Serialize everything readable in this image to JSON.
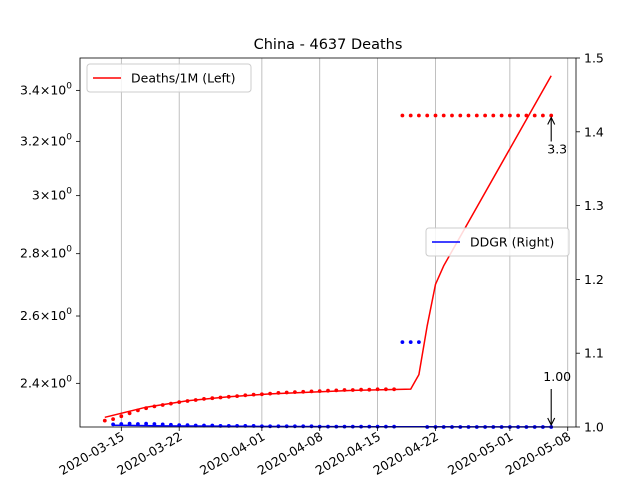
{
  "chart_data": {
    "type": "line",
    "title": "China - 4637 Deaths",
    "x_axis": {
      "type": "date",
      "range": [
        "2020-03-10",
        "2020-05-09"
      ],
      "tick_labels": [
        "2020-03-15",
        "2020-03-22",
        "2020-04-01",
        "2020-04-08",
        "2020-04-15",
        "2020-04-22",
        "2020-05-01",
        "2020-05-08"
      ],
      "grid": true
    },
    "y_left": {
      "scale": "log",
      "range": [
        2.2786,
        3.5334
      ],
      "tick_labels": [
        {
          "value": 2.4,
          "base": "2.4",
          "exp": "0"
        },
        {
          "value": 2.6,
          "base": "2.6",
          "exp": "0"
        },
        {
          "value": 2.8,
          "base": "2.8",
          "exp": "0"
        },
        {
          "value": 3.0,
          "base": "3",
          "exp": "0"
        },
        {
          "value": 3.2,
          "base": "3.2",
          "exp": "0"
        },
        {
          "value": 3.4,
          "base": "3.4",
          "exp": "0"
        }
      ]
    },
    "y_right": {
      "scale": "linear",
      "range": [
        1.0,
        1.5
      ],
      "tick_labels": [
        "1.0",
        "1.1",
        "1.2",
        "1.3",
        "1.4",
        "1.5"
      ]
    },
    "series": [
      {
        "name": "Deaths/1M (Left)",
        "axis": "left",
        "style": "line",
        "color": "#ff0000",
        "x": [
          "2020-03-13",
          "2020-03-18",
          "2020-03-23",
          "2020-03-28",
          "2020-04-02",
          "2020-04-07",
          "2020-04-12",
          "2020-04-17",
          "2020-04-19",
          "2020-04-20",
          "2020-04-21",
          "2020-04-22",
          "2020-04-23",
          "2020-05-06"
        ],
        "y": [
          2.305,
          2.333,
          2.351,
          2.362,
          2.37,
          2.375,
          2.38,
          2.3825,
          2.3835,
          2.425,
          2.57,
          2.7,
          2.76,
          3.46
        ]
      },
      {
        "name": "",
        "axis": "left",
        "style": "dots",
        "color": "#ff0000",
        "x": [
          "2020-03-13",
          "2020-03-14",
          "2020-03-15",
          "2020-03-16",
          "2020-03-17",
          "2020-03-18",
          "2020-03-19",
          "2020-03-20",
          "2020-03-21",
          "2020-03-22",
          "2020-03-23",
          "2020-03-24",
          "2020-03-25",
          "2020-03-26",
          "2020-03-27",
          "2020-03-28",
          "2020-03-29",
          "2020-03-30",
          "2020-03-31",
          "2020-04-01",
          "2020-04-02",
          "2020-04-03",
          "2020-04-04",
          "2020-04-05",
          "2020-04-06",
          "2020-04-07",
          "2020-04-08",
          "2020-04-09",
          "2020-04-10",
          "2020-04-11",
          "2020-04-12",
          "2020-04-13",
          "2020-04-14",
          "2020-04-15",
          "2020-04-16",
          "2020-04-17"
        ],
        "y": [
          2.296,
          2.3,
          2.308,
          2.316,
          2.324,
          2.33,
          2.335,
          2.339,
          2.343,
          2.347,
          2.35,
          2.353,
          2.356,
          2.358,
          2.36,
          2.362,
          2.364,
          2.366,
          2.368,
          2.369,
          2.371,
          2.373,
          2.374,
          2.375,
          2.376,
          2.377,
          2.378,
          2.379,
          2.38,
          2.381,
          2.381,
          2.382,
          2.382,
          2.383,
          2.383,
          2.383
        ]
      },
      {
        "name": "",
        "axis": "left",
        "style": "dots",
        "color": "#ff0000",
        "x": [
          "2020-04-18",
          "2020-04-19",
          "2020-04-20",
          "2020-04-21",
          "2020-04-22",
          "2020-04-23",
          "2020-04-24",
          "2020-04-25",
          "2020-04-26",
          "2020-04-27",
          "2020-04-28",
          "2020-04-29",
          "2020-04-30",
          "2020-05-01",
          "2020-05-02",
          "2020-05-03",
          "2020-05-04",
          "2020-05-05",
          "2020-05-06"
        ],
        "y": [
          3.3,
          3.3,
          3.3,
          3.3,
          3.3,
          3.3,
          3.3,
          3.3,
          3.3,
          3.3,
          3.3,
          3.3,
          3.3,
          3.3,
          3.3,
          3.3,
          3.3,
          3.3,
          3.3
        ]
      },
      {
        "name": "DDGR (Right)",
        "axis": "right",
        "style": "line",
        "color": "#0000ff",
        "x": [
          "2020-03-14",
          "2020-03-20",
          "2020-03-30",
          "2020-04-10",
          "2020-04-20",
          "2020-05-06"
        ],
        "y": [
          1.0025,
          1.0015,
          1.001,
          1.0005,
          1.0003,
          1.0002
        ]
      },
      {
        "name": "",
        "axis": "right",
        "style": "dots",
        "color": "#0000ff",
        "x": [
          "2020-03-14",
          "2020-03-15",
          "2020-03-16",
          "2020-03-17",
          "2020-03-18",
          "2020-03-19",
          "2020-03-20",
          "2020-03-21",
          "2020-03-22",
          "2020-03-23",
          "2020-03-24",
          "2020-03-25",
          "2020-03-26",
          "2020-03-27",
          "2020-03-28",
          "2020-03-29",
          "2020-03-30",
          "2020-03-31",
          "2020-04-01",
          "2020-04-02",
          "2020-04-03",
          "2020-04-04",
          "2020-04-05",
          "2020-04-06",
          "2020-04-07",
          "2020-04-08",
          "2020-04-09",
          "2020-04-10",
          "2020-04-11",
          "2020-04-12",
          "2020-04-13",
          "2020-04-14",
          "2020-04-15",
          "2020-04-16",
          "2020-04-17"
        ],
        "y": [
          1.0035,
          1.004,
          1.0045,
          1.004,
          1.0045,
          1.004,
          1.0035,
          1.003,
          1.0025,
          1.0025,
          1.002,
          1.002,
          1.002,
          1.0015,
          1.0015,
          1.0015,
          1.0015,
          1.0015,
          1.001,
          1.001,
          1.001,
          1.001,
          1.001,
          1.001,
          1.001,
          1.0005,
          1.0005,
          1.0005,
          1.0005,
          1.0005,
          1.0005,
          1.0005,
          1.0005,
          1.0005,
          1.0005
        ]
      },
      {
        "name": "",
        "axis": "right",
        "style": "dots",
        "color": "#0000ff",
        "x": [
          "2020-04-18",
          "2020-04-19",
          "2020-04-20"
        ],
        "y": [
          1.115,
          1.115,
          1.115
        ]
      },
      {
        "name": "",
        "axis": "right",
        "style": "dots",
        "color": "#0000ff",
        "x": [
          "2020-04-21",
          "2020-04-22",
          "2020-04-23",
          "2020-04-24",
          "2020-04-25",
          "2020-04-26",
          "2020-04-27",
          "2020-04-28",
          "2020-04-29",
          "2020-04-30",
          "2020-05-01",
          "2020-05-02",
          "2020-05-03",
          "2020-05-04",
          "2020-05-05",
          "2020-05-06"
        ],
        "y": [
          1.0,
          1.0,
          1.0,
          1.0,
          1.0,
          1.0,
          1.0,
          1.0,
          1.0,
          1.0,
          1.0,
          1.0,
          1.0,
          1.0,
          1.0,
          1.0
        ]
      }
    ],
    "annotations": [
      {
        "text": "3.3",
        "axis": "left",
        "x": "2020-05-06",
        "y": 3.3,
        "arrow": true
      },
      {
        "text": "1.00",
        "axis": "right",
        "x": "2020-05-06",
        "y": 1.0,
        "arrow": true
      }
    ],
    "legends": [
      {
        "position": "upper-left",
        "entries": [
          {
            "label": "Deaths/1M (Left)",
            "color": "#ff0000"
          }
        ]
      },
      {
        "position": "center-right",
        "entries": [
          {
            "label": "DDGR (Right)",
            "color": "#0000ff"
          }
        ]
      }
    ]
  }
}
